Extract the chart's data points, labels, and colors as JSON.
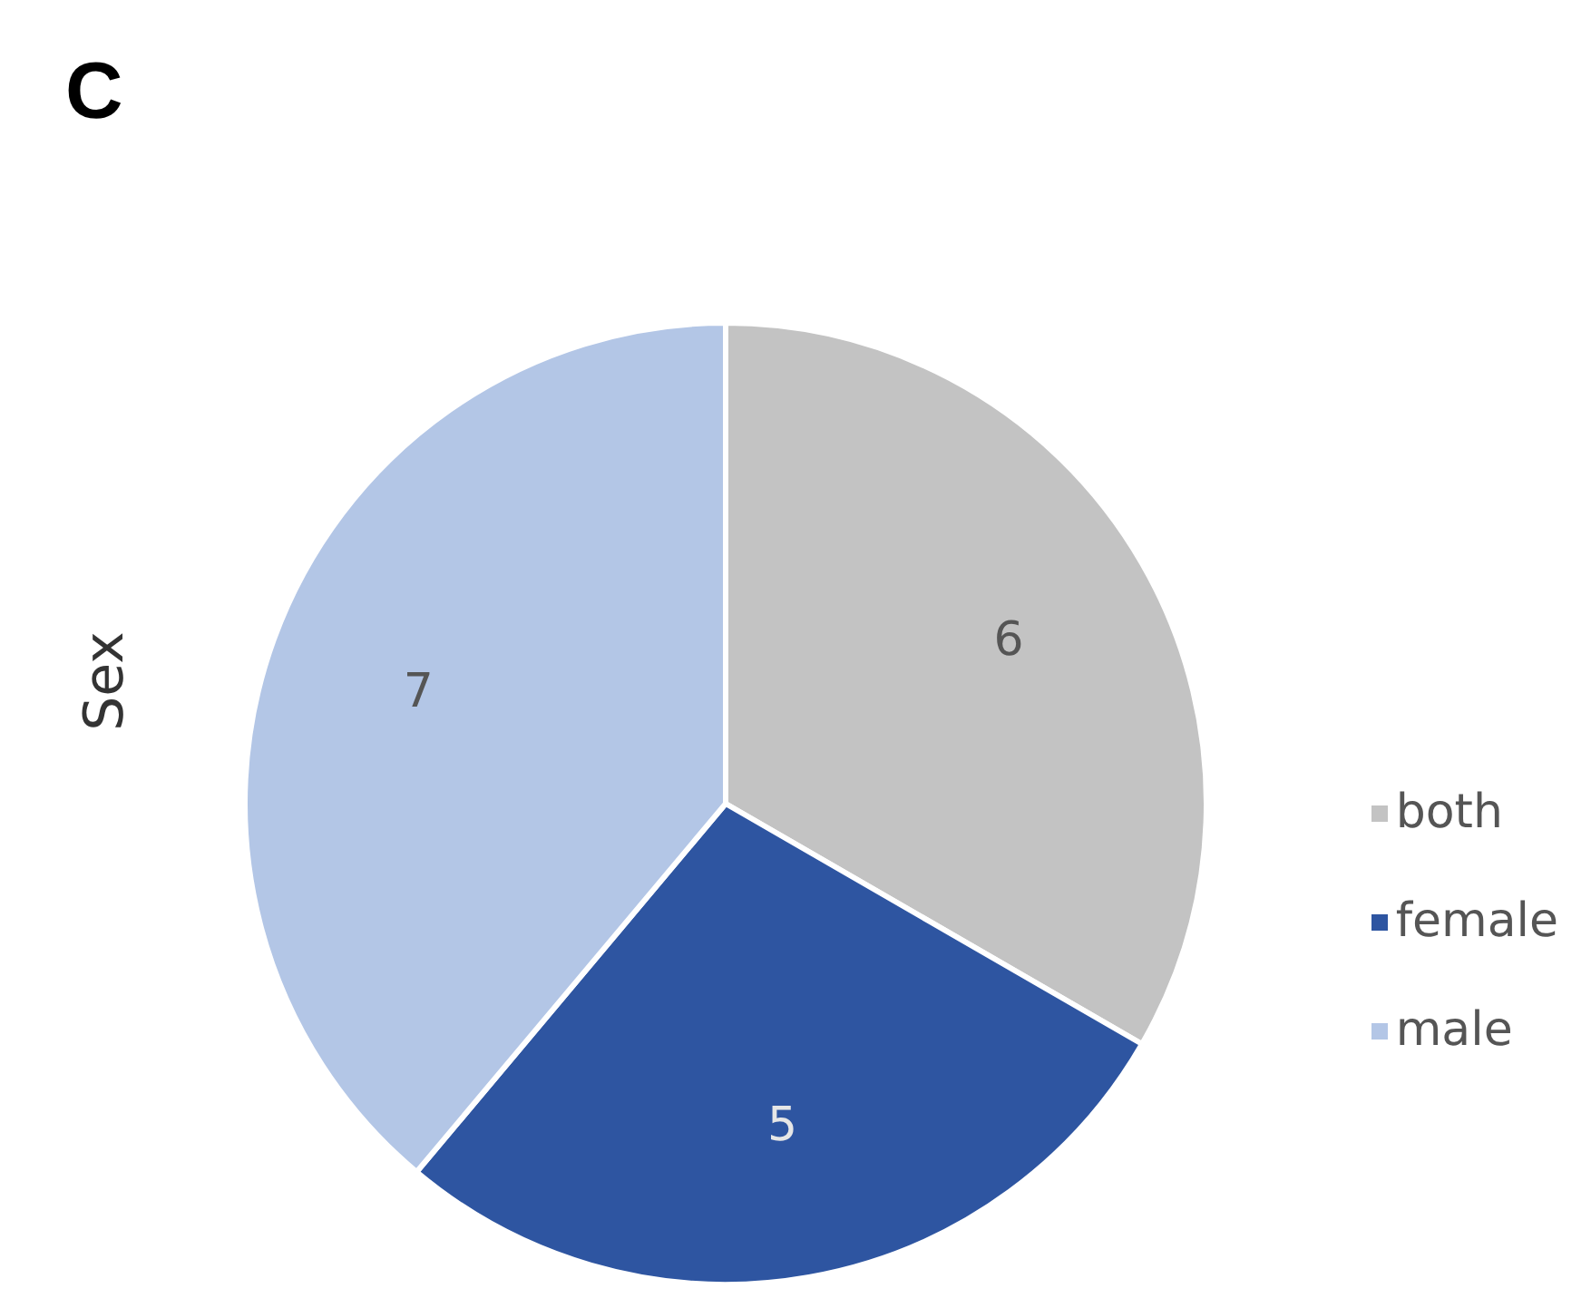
{
  "chart_data": {
    "type": "pie",
    "title": "C",
    "ylabel": "Sex",
    "categories": [
      "both",
      "female",
      "male"
    ],
    "values": [
      6,
      5,
      7
    ],
    "colors": [
      "#c3c3c3",
      "#2e55a1",
      "#b3c6e6"
    ],
    "data_labels": true,
    "legend": "right"
  }
}
